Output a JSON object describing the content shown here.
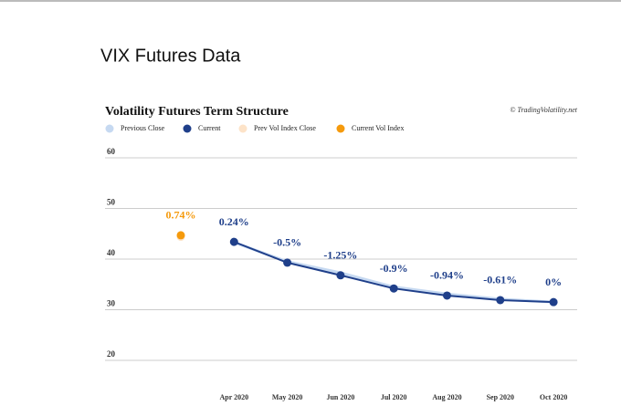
{
  "page_title": "VIX Futures Data",
  "chart_data": {
    "type": "line",
    "title": "Volatility Futures Term Structure",
    "credit": "© TradingVolatility.net",
    "categories": [
      null,
      "Apr 2020",
      "May 2020",
      "Jun 2020",
      "Jul 2020",
      "Aug 2020",
      "Sep 2020",
      "Oct 2020"
    ],
    "series": [
      {
        "name": "Previous Close",
        "color": "#c6d9f1",
        "values": [
          null,
          43.3,
          39.5,
          37.3,
          34.5,
          33.1,
          32.1,
          31.5
        ],
        "dots": false
      },
      {
        "name": "Current",
        "color": "#1f3f8a",
        "values": [
          null,
          43.4,
          39.3,
          36.8,
          34.2,
          32.8,
          31.9,
          31.5
        ],
        "dots": true
      },
      {
        "name": "Prev Vol Index Close",
        "color": "#fde3c8",
        "values": [
          44.4,
          null,
          null,
          null,
          null,
          null,
          null,
          null
        ],
        "dots": true
      },
      {
        "name": "Current Vol Index",
        "color": "#f59a0c",
        "values": [
          44.7,
          null,
          null,
          null,
          null,
          null,
          null,
          null
        ],
        "dots": true
      }
    ],
    "change_labels": [
      "0.74%",
      "0.24%",
      "-0.5%",
      "-1.25%",
      "-0.9%",
      "-0.94%",
      "-0.61%",
      "0%"
    ],
    "ylim": [
      20,
      60
    ],
    "yticks": [
      20,
      30,
      40,
      50,
      60
    ],
    "grid": true
  }
}
